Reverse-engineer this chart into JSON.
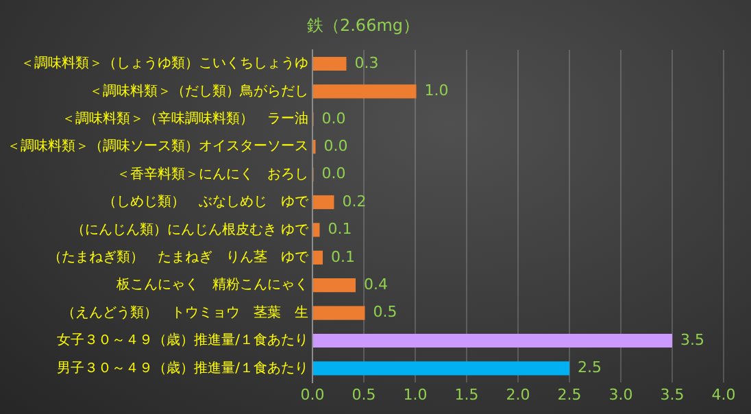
{
  "chart_data": {
    "type": "bar",
    "orientation": "horizontal",
    "title": "鉄（2.66mg）",
    "categories": [
      "＜調味料類＞（しょうゆ類）こいくちしょうゆ",
      "＜調味料類＞（だし類）鳥がらだし",
      "＜調味料類＞（辛味調味料類）　ラー油",
      "＜調味料類＞（調味ソース類）オイスターソース",
      "＜香辛料類＞にんにく　おろし",
      "（しめじ類）　ぶなしめじ　ゆで",
      "（にんじん類）にんじん根皮むき ゆで",
      "（たまねぎ類）　たまねぎ　りん茎　ゆで",
      "板こんにゃく　精粉こんにゃく",
      "（えんどう類）　トウミョウ　茎葉　生",
      "女子３０～４９（歳）推進量/１食あたり",
      "男子３０～４９（歳）推進量/１食あたり"
    ],
    "values": [
      0.33,
      1.01,
      0.01,
      0.03,
      0.01,
      0.21,
      0.07,
      0.1,
      0.42,
      0.51,
      3.5,
      2.5
    ],
    "value_labels": [
      "0.3",
      "1.0",
      "0.0",
      "0.0",
      "0.0",
      "0.2",
      "0.1",
      "0.1",
      "0.4",
      "0.5",
      "3.5",
      "2.5"
    ],
    "colors": [
      "#ed7d31",
      "#ed7d31",
      "#ed7d31",
      "#ed7d31",
      "#ed7d31",
      "#ed7d31",
      "#ed7d31",
      "#ed7d31",
      "#ed7d31",
      "#ed7d31",
      "#cc99ff",
      "#00b0f0"
    ],
    "xlim": [
      0,
      4
    ],
    "xticks": [
      {
        "value": 0,
        "label": "0.0"
      },
      {
        "value": 0.5,
        "label": "0.5"
      },
      {
        "value": 1,
        "label": "1.0"
      },
      {
        "value": 1.5,
        "label": "1.5"
      },
      {
        "value": 2,
        "label": "2.0"
      },
      {
        "value": 2.5,
        "label": "2.5"
      },
      {
        "value": 3,
        "label": "3.0"
      },
      {
        "value": 3.5,
        "label": "3.5"
      },
      {
        "value": 4,
        "label": "4.0"
      }
    ],
    "grid": "x",
    "legend": false
  }
}
